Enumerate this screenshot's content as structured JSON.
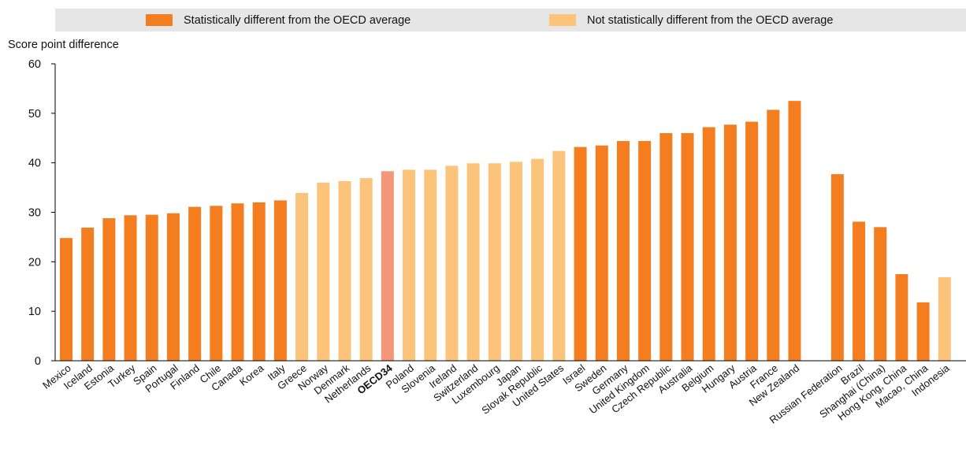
{
  "legend": {
    "items": [
      {
        "label": "Statistically different from the OECD average",
        "color": "#f47d20"
      },
      {
        "label": "Not statistically different from the OECD average",
        "color": "#fcc47a"
      }
    ]
  },
  "colors": {
    "significant": "#f47d20",
    "not_significant": "#fcc47a",
    "average": "#f3967a",
    "axis": "#000000"
  },
  "chart_data": {
    "type": "bar",
    "title": "",
    "xlabel": "",
    "ylabel": "Score point difference",
    "ylim": [
      0,
      60
    ],
    "yticks": [
      0,
      10,
      20,
      30,
      40,
      50,
      60
    ],
    "grid": false,
    "legend_position": "top",
    "categories": [
      "Mexico",
      "Iceland",
      "Estonia",
      "Turkey",
      "Spain",
      "Portugal",
      "Finland",
      "Chile",
      "Canada",
      "Korea",
      "Italy",
      "Greece",
      "Norway",
      "Denmark",
      "Netherlands",
      "OECD34",
      "Poland",
      "Slovenia",
      "Ireland",
      "Switzerland",
      "Luxembourg",
      "Japan",
      "Slovak Republic",
      "United States",
      "Israel",
      "Sweden",
      "Germany",
      "United Kingdom",
      "Czech Republic",
      "Australia",
      "Belgium",
      "Hungary",
      "Austria",
      "France",
      "New Zealand",
      "Russian Federation",
      "Brazil",
      "Shanghai (China)",
      "Hong Kong, China",
      "Macao, China",
      "Indonesia"
    ],
    "values": [
      24.8,
      26.9,
      28.8,
      29.4,
      29.5,
      29.8,
      31.1,
      31.3,
      31.8,
      32.0,
      32.4,
      33.9,
      36.0,
      36.3,
      36.9,
      38.3,
      38.6,
      38.6,
      39.4,
      39.9,
      39.9,
      40.2,
      40.8,
      42.4,
      43.2,
      43.5,
      44.4,
      44.4,
      46.0,
      46.0,
      47.2,
      47.7,
      48.3,
      50.7,
      52.5,
      37.7,
      28.1,
      27.0,
      17.5,
      11.8,
      16.9
    ],
    "status": [
      "significant",
      "significant",
      "significant",
      "significant",
      "significant",
      "significant",
      "significant",
      "significant",
      "significant",
      "significant",
      "significant",
      "not_significant",
      "not_significant",
      "not_significant",
      "not_significant",
      "average",
      "not_significant",
      "not_significant",
      "not_significant",
      "not_significant",
      "not_significant",
      "not_significant",
      "not_significant",
      "not_significant",
      "significant",
      "significant",
      "significant",
      "significant",
      "significant",
      "significant",
      "significant",
      "significant",
      "significant",
      "significant",
      "significant",
      "significant",
      "significant",
      "significant",
      "significant",
      "significant",
      "not_significant"
    ],
    "bold_categories": [
      "OECD34"
    ]
  }
}
